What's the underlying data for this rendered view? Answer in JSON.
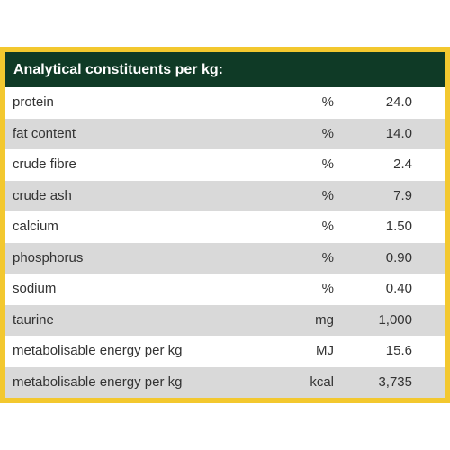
{
  "table": {
    "title": "Analytical constituents per kg:",
    "rows": [
      [
        "protein",
        "%",
        "24.0"
      ],
      [
        "fat content",
        "%",
        "14.0"
      ],
      [
        "crude fibre",
        "%",
        "2.4"
      ],
      [
        "crude ash",
        "%",
        "7.9"
      ],
      [
        "calcium",
        "%",
        "1.50"
      ],
      [
        "phosphorus",
        "%",
        "0.90"
      ],
      [
        "sodium",
        "%",
        "0.40"
      ],
      [
        "taurine",
        "mg",
        "1,000"
      ],
      [
        "metabolisable energy per kg",
        "MJ",
        "15.6"
      ],
      [
        "metabolisable energy per kg",
        "kcal",
        "3,735"
      ]
    ]
  }
}
